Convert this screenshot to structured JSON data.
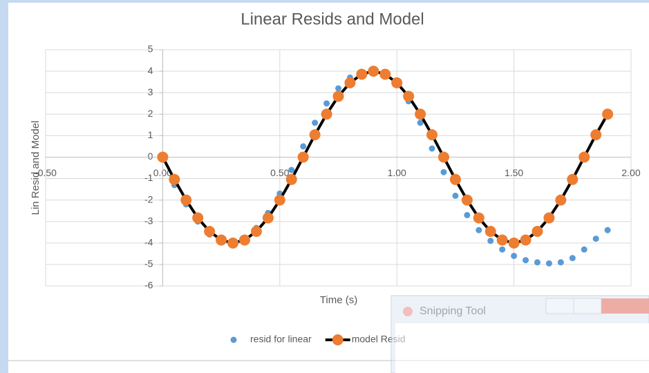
{
  "chart_data": {
    "type": "scatter",
    "title": "Linear Resids and Model",
    "x_label": "Time (s)",
    "y_label": "Lin Resid and Model",
    "x": [
      0,
      0.05,
      0.1,
      0.15,
      0.2,
      0.25,
      0.3,
      0.35,
      0.4,
      0.45,
      0.5,
      0.55,
      0.6,
      0.65,
      0.7,
      0.75,
      0.8,
      0.85,
      0.9,
      0.95,
      1.0,
      1.05,
      1.1,
      1.15,
      1.2,
      1.25,
      1.3,
      1.35,
      1.4,
      1.45,
      1.5,
      1.55,
      1.6,
      1.65,
      1.7,
      1.75,
      1.8,
      1.85,
      1.9
    ],
    "series": [
      {
        "name": "resid for linear",
        "color": "#5b9bd5",
        "marker": "dot",
        "values": [
          0,
          -1.3,
          -2.2,
          -3.0,
          -3.6,
          -3.9,
          -3.95,
          -3.8,
          -3.3,
          -2.6,
          -1.7,
          -0.6,
          0.5,
          1.6,
          2.5,
          3.2,
          3.7,
          3.95,
          4.0,
          3.9,
          3.4,
          2.6,
          1.6,
          0.4,
          -0.7,
          -1.8,
          -2.7,
          -3.4,
          -3.9,
          -4.3,
          -4.6,
          -4.8,
          -4.9,
          -4.95,
          -4.9,
          -4.7,
          -4.3,
          -3.8,
          -3.4
        ]
      },
      {
        "name": "model Resid",
        "color": "#ed7d31",
        "line_color": "#000000",
        "marker": "line-dot",
        "values": [
          0,
          -1.04,
          -2,
          -2.83,
          -3.46,
          -3.86,
          -4,
          -3.86,
          -3.46,
          -2.83,
          -2,
          -1.04,
          0,
          1.04,
          2,
          2.83,
          3.46,
          3.86,
          4,
          3.86,
          3.46,
          2.83,
          2,
          1.04,
          0,
          -1.04,
          -2,
          -2.83,
          -3.46,
          -3.86,
          -4,
          -3.86,
          -3.46,
          -2.83,
          -2,
          -1.04,
          0,
          1.04,
          2
        ]
      }
    ],
    "xlim": [
      -0.5,
      2.0
    ],
    "xticks": [
      {
        "value": -0.5,
        "label": "-0.50"
      },
      {
        "value": 0,
        "label": "0.00"
      },
      {
        "value": 0.5,
        "label": "0.50"
      },
      {
        "value": 1.0,
        "label": "1.00"
      },
      {
        "value": 1.5,
        "label": "1.50"
      },
      {
        "value": 2.0,
        "label": "2.00"
      }
    ],
    "ylim": [
      -6,
      5
    ],
    "yticks": [
      -6,
      -5,
      -4,
      -3,
      -2,
      -1,
      0,
      1,
      2,
      3,
      4,
      5
    ],
    "grid": true,
    "legend": "bottom"
  },
  "overlay": {
    "title": "Snipping Tool"
  }
}
